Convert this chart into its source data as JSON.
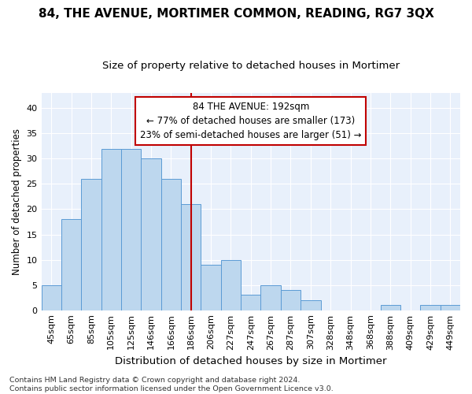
{
  "title": "84, THE AVENUE, MORTIMER COMMON, READING, RG7 3QX",
  "subtitle": "Size of property relative to detached houses in Mortimer",
  "xlabel": "Distribution of detached houses by size in Mortimer",
  "ylabel": "Number of detached properties",
  "footer_line1": "Contains HM Land Registry data © Crown copyright and database right 2024.",
  "footer_line2": "Contains public sector information licensed under the Open Government Licence v3.0.",
  "categories": [
    "45sqm",
    "65sqm",
    "85sqm",
    "105sqm",
    "125sqm",
    "146sqm",
    "166sqm",
    "186sqm",
    "206sqm",
    "227sqm",
    "247sqm",
    "267sqm",
    "287sqm",
    "307sqm",
    "328sqm",
    "348sqm",
    "368sqm",
    "388sqm",
    "409sqm",
    "429sqm",
    "449sqm"
  ],
  "values": [
    5,
    18,
    26,
    32,
    32,
    30,
    26,
    21,
    9,
    10,
    3,
    5,
    4,
    2,
    0,
    0,
    0,
    1,
    0,
    1,
    1
  ],
  "bar_color": "#bdd7ee",
  "bar_edge_color": "#5b9bd5",
  "vline_x_index": 7,
  "vline_color": "#c00000",
  "annotation_title": "84 THE AVENUE: 192sqm",
  "annotation_line1": "← 77% of detached houses are smaller (173)",
  "annotation_line2": "23% of semi-detached houses are larger (51) →",
  "annotation_box_color": "white",
  "annotation_box_edge_color": "#c00000",
  "ylim": [
    0,
    43
  ],
  "yticks": [
    0,
    5,
    10,
    15,
    20,
    25,
    30,
    35,
    40
  ],
  "background_color": "#e8f0fb",
  "grid_color": "white",
  "title_fontsize": 11,
  "subtitle_fontsize": 9.5,
  "xlabel_fontsize": 9.5,
  "ylabel_fontsize": 8.5,
  "tick_fontsize": 8,
  "footer_fontsize": 6.8,
  "annotation_fontsize": 8.5
}
